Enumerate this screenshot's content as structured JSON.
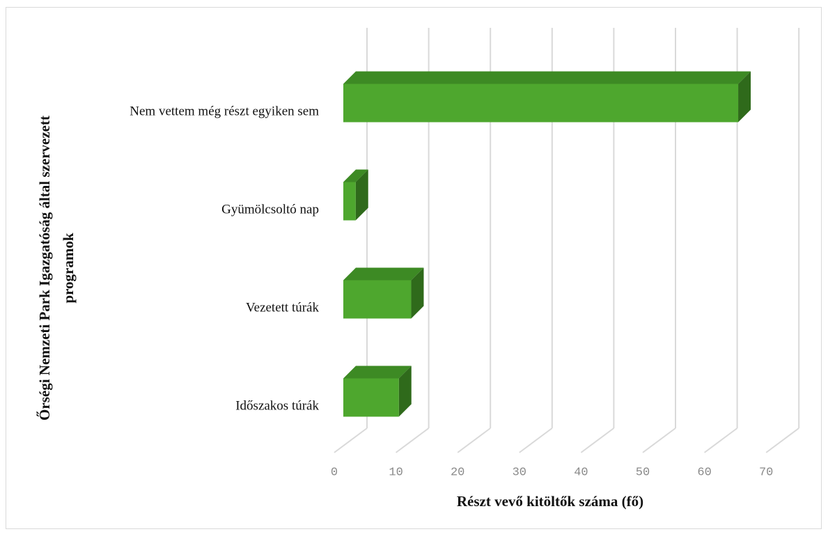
{
  "chart_data": {
    "type": "bar3d_horizontal",
    "categories": [
      "Nem vettem még részt egyiken sem",
      "Gyümölcsoltó nap",
      "Vezetett túrák",
      "Időszakos túrák"
    ],
    "values": [
      64,
      2,
      11,
      9
    ],
    "color": "#4ea72e",
    "xlim": [
      0,
      70
    ],
    "xticks": [
      0,
      10,
      20,
      30,
      40,
      50,
      60,
      70
    ],
    "xlabel": "Részt vevő kitöltők száma (fő)",
    "ylabel": [
      "Őrségi Nemzeti Park Igazgatóság által szervezett",
      "programok"
    ],
    "grid": true
  }
}
